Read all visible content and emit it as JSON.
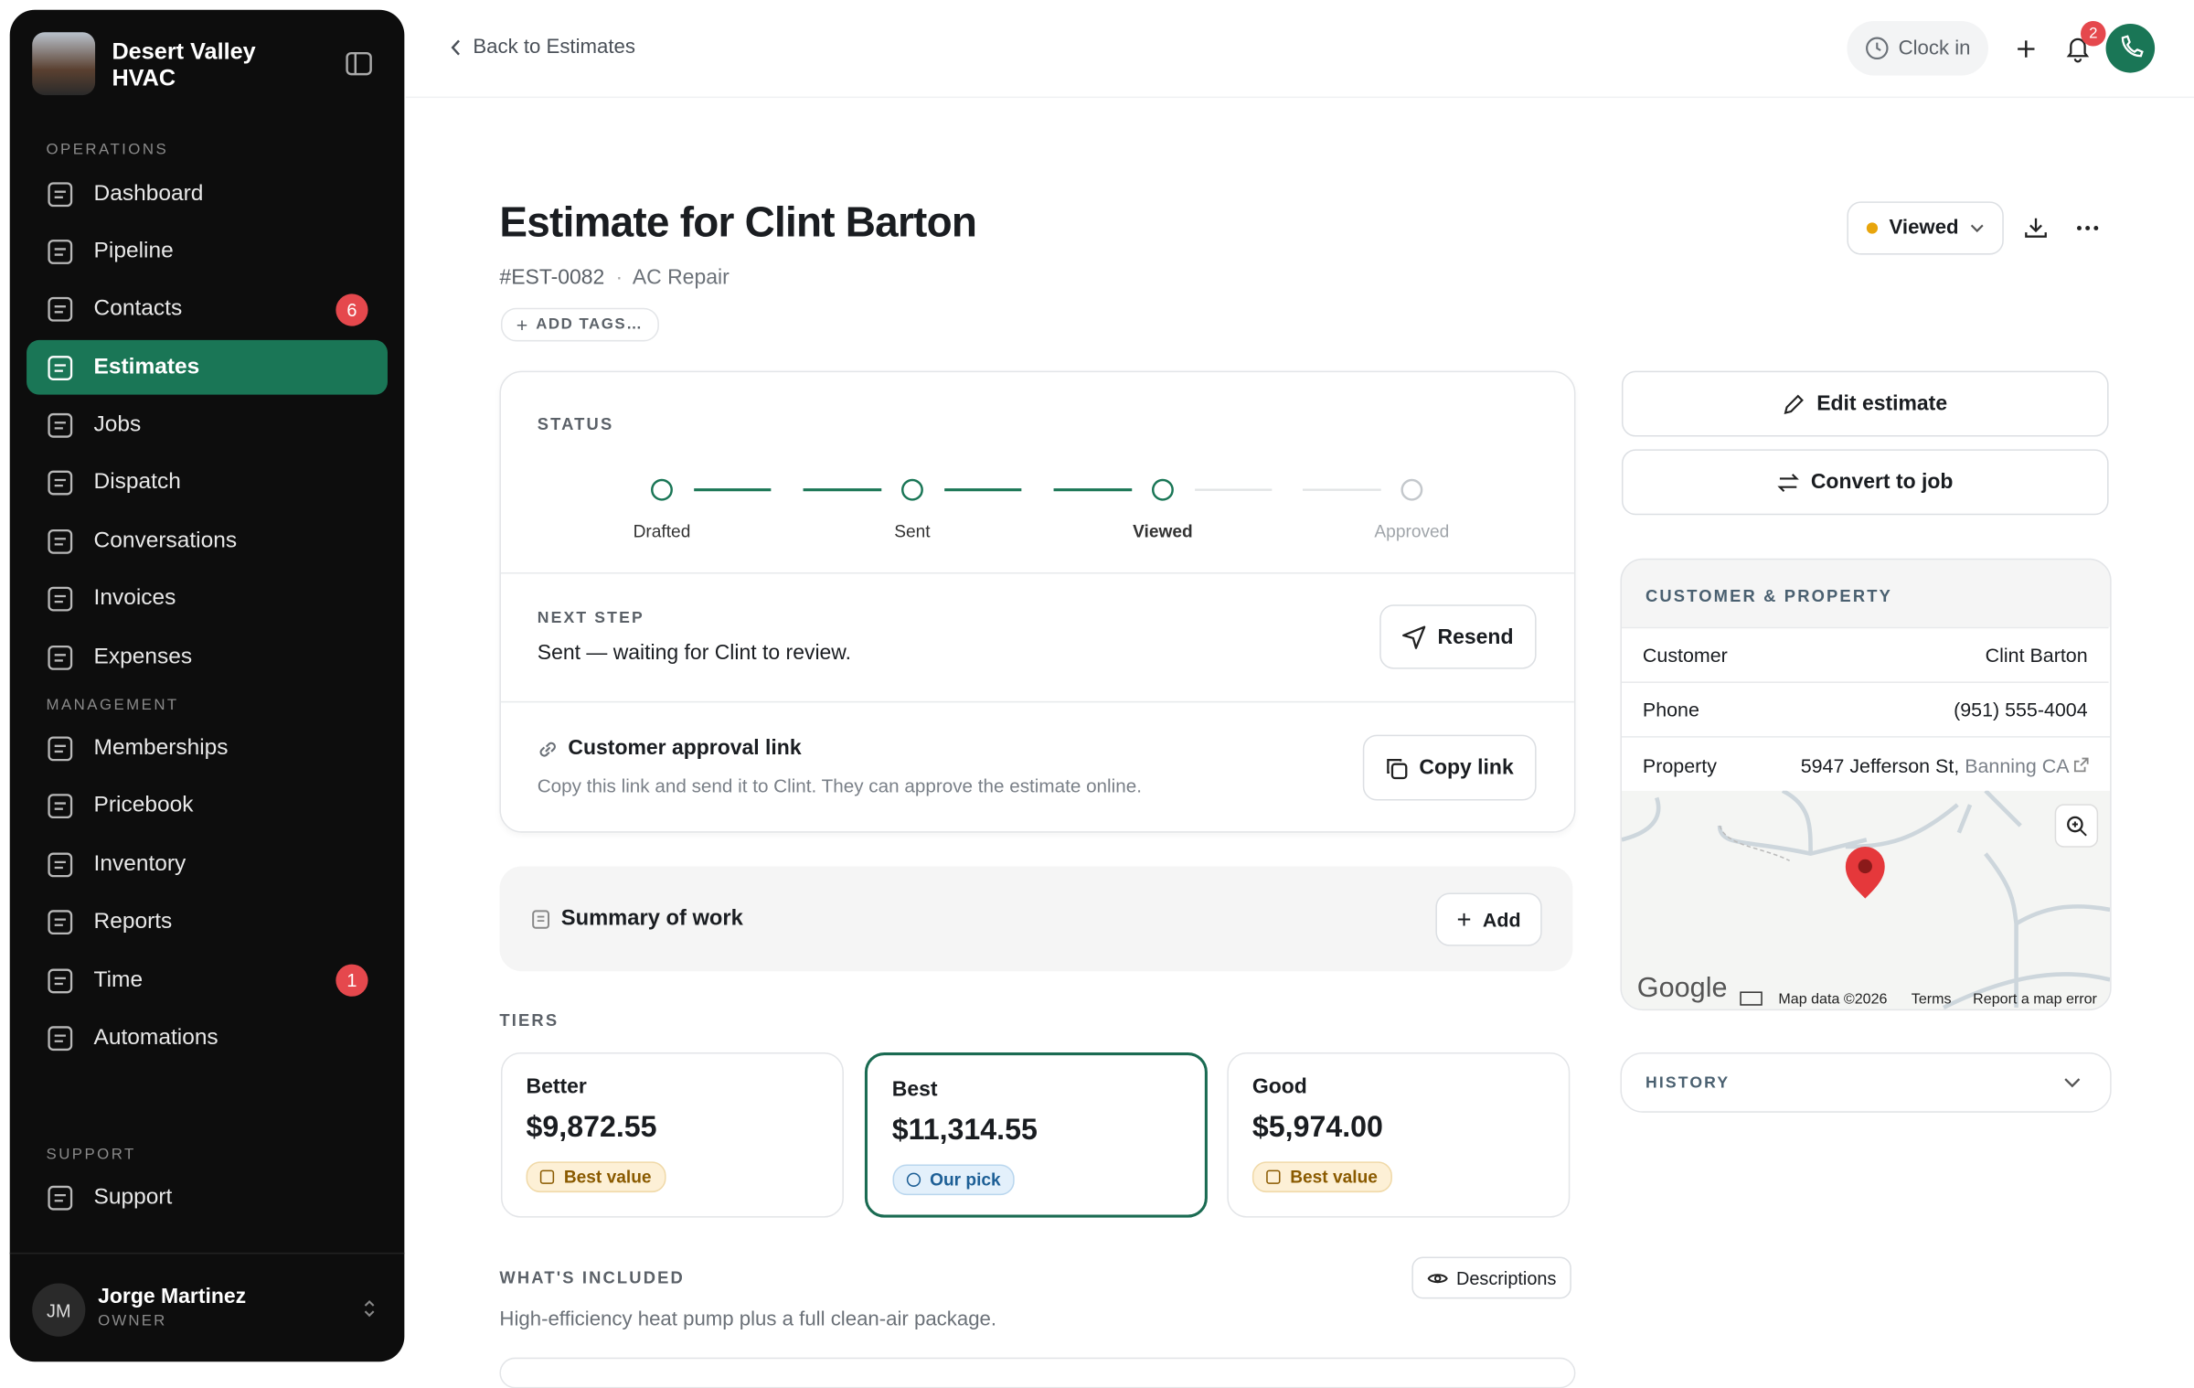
{
  "sidebar": {
    "company": "Desert Valley HVAC",
    "sections": [
      {
        "label": "OPERATIONS",
        "items": [
          {
            "label": "Dashboard"
          },
          {
            "label": "Pipeline"
          },
          {
            "label": "Contacts",
            "badge": 6
          },
          {
            "label": "Estimates"
          },
          {
            "label": "Jobs"
          },
          {
            "label": "Dispatch"
          },
          {
            "label": "Conversations"
          },
          {
            "label": "Invoices"
          },
          {
            "label": "Expenses"
          }
        ]
      },
      {
        "label": "MANAGEMENT",
        "items": [
          {
            "label": "Memberships"
          },
          {
            "label": "Pricebook"
          },
          {
            "label": "Inventory"
          },
          {
            "label": "Reports"
          },
          {
            "label": "Time",
            "badge": 1
          },
          {
            "label": "Automations"
          }
        ]
      },
      {
        "label": "SUPPORT",
        "items": [
          {
            "label": "Support"
          }
        ]
      }
    ],
    "active": "Estimates",
    "user": {
      "initials": "JM",
      "name": "Jorge Martinez",
      "role": "OWNER"
    }
  },
  "topbar": {
    "back": "Back to Estimates",
    "clock_in": "Clock in",
    "notifications": 2
  },
  "header": {
    "title": "Estimate for Clint Barton",
    "number": "#EST-0082",
    "service": "AC Repair",
    "add_tags": "ADD TAGS…",
    "status": "Viewed"
  },
  "status_card": {
    "label": "STATUS",
    "steps": [
      "Drafted",
      "Sent",
      "Viewed",
      "Approved"
    ],
    "next_step_label": "NEXT STEP",
    "next_step": "Sent — waiting for Clint to review.",
    "resend": "Resend",
    "approval_title": "Customer approval link",
    "approval_text": "Copy this link and send it to Clint. They can approve the estimate online.",
    "copy": "Copy link"
  },
  "summary": {
    "title": "Summary of work",
    "add": "Add"
  },
  "tiers": {
    "label": "TIERS",
    "selected": "Best",
    "items": [
      {
        "name": "Better",
        "price": "$9,872.55",
        "tag": "Best value"
      },
      {
        "name": "Best",
        "price": "$11,314.55",
        "tag": "Our pick"
      },
      {
        "name": "Good",
        "price": "$5,974.00",
        "tag": "Best value"
      }
    ]
  },
  "included": {
    "label": "WHAT'S INCLUDED",
    "button": "Descriptions",
    "text": "High-efficiency heat pump plus a full clean-air package."
  },
  "actions": {
    "edit": "Edit estimate",
    "convert": "Convert to job"
  },
  "customer": {
    "label": "CUSTOMER & PROPERTY",
    "rows": [
      {
        "label": "Customer",
        "value": "Clint Barton"
      },
      {
        "label": "Phone",
        "value": "(951) 555-4004"
      }
    ],
    "property_label": "Property",
    "address": "5947 Jefferson St,",
    "city": "Banning CA"
  },
  "map": {
    "logo": "Google",
    "data": "Map data ©2026",
    "terms": "Terms",
    "report": "Report a map error"
  },
  "history": "HISTORY"
}
